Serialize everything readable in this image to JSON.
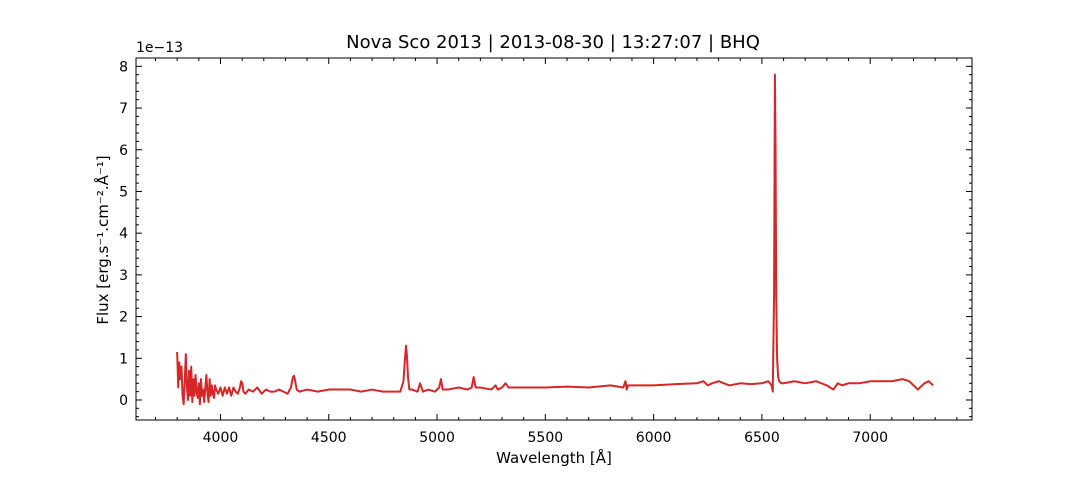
{
  "chart_data": {
    "type": "line",
    "title": "Nova Sco 2013 | 2013-08-30 | 13:27:07 | BHQ",
    "xlabel": "Wavelength [Å]",
    "ylabel": "Flux [erg.s⁻¹.cm⁻².Å⁻¹]",
    "y_offset_label": "1e−13",
    "y_scale_factor": 1e-13,
    "xlim": [
      3610,
      7470
    ],
    "ylim": [
      -0.48,
      8.2
    ],
    "x_ticks": [
      4000,
      4500,
      5000,
      5500,
      6000,
      6500,
      7000
    ],
    "x_tick_labels": [
      "4000",
      "4500",
      "5000",
      "5500",
      "6000",
      "6500",
      "7000"
    ],
    "y_ticks": [
      0,
      1,
      2,
      3,
      4,
      5,
      6,
      7,
      8
    ],
    "y_tick_labels": [
      "0",
      "1",
      "2",
      "3",
      "4",
      "5",
      "6",
      "7",
      "8"
    ],
    "grid": false,
    "line_color": "#d62728",
    "series": [
      {
        "x": [
          3800,
          3805,
          3810,
          3815,
          3820,
          3825,
          3830,
          3835,
          3840,
          3845,
          3850,
          3855,
          3860,
          3865,
          3870,
          3875,
          3880,
          3885,
          3890,
          3895,
          3900,
          3905,
          3910,
          3915,
          3920,
          3925,
          3930,
          3935,
          3940,
          3945,
          3950,
          3955,
          3960,
          3965,
          3970,
          3975,
          3980,
          3990,
          4000,
          4010,
          4020,
          4030,
          4040,
          4050,
          4060,
          4070,
          4080,
          4090,
          4095,
          4101,
          4106,
          4115,
          4130,
          4150,
          4170,
          4190,
          4210,
          4230,
          4250,
          4270,
          4290,
          4310,
          4325,
          4335,
          4340,
          4345,
          4352,
          4365,
          4400,
          4450,
          4500,
          4550,
          4600,
          4650,
          4700,
          4750,
          4800,
          4830,
          4845,
          4852,
          4857,
          4861,
          4866,
          4872,
          4885,
          4910,
          4922,
          4935,
          4960,
          4990,
          5010,
          5018,
          5026,
          5050,
          5100,
          5140,
          5160,
          5169,
          5178,
          5200,
          5250,
          5270,
          5280,
          5300,
          5316,
          5330,
          5400,
          5500,
          5600,
          5700,
          5800,
          5860,
          5870,
          5876,
          5882,
          5890,
          5950,
          6000,
          6100,
          6200,
          6230,
          6250,
          6270,
          6300,
          6350,
          6400,
          6450,
          6500,
          6530,
          6545,
          6550,
          6556,
          6560,
          6563,
          6566,
          6570,
          6575,
          6580,
          6590,
          6600,
          6650,
          6700,
          6750,
          6800,
          6830,
          6850,
          6870,
          6900,
          6950,
          7000,
          7050,
          7100,
          7150,
          7180,
          7200,
          7220,
          7250,
          7270,
          7290
        ],
        "y": [
          1.15,
          0.3,
          0.9,
          0.5,
          0.8,
          0.1,
          -0.1,
          0.45,
          1.1,
          0.3,
          0.0,
          0.7,
          0.1,
          0.8,
          -0.05,
          0.5,
          0.1,
          0.6,
          0.2,
          0.05,
          0.4,
          -0.1,
          0.5,
          0.1,
          0.25,
          -0.05,
          0.3,
          0.6,
          0.15,
          -0.05,
          0.5,
          0.1,
          0.35,
          0.15,
          0.05,
          0.35,
          0.25,
          0.15,
          0.3,
          0.1,
          0.3,
          0.15,
          0.3,
          0.1,
          0.3,
          0.2,
          0.15,
          0.3,
          0.45,
          0.4,
          0.2,
          0.15,
          0.25,
          0.2,
          0.3,
          0.15,
          0.25,
          0.2,
          0.2,
          0.25,
          0.2,
          0.15,
          0.3,
          0.55,
          0.58,
          0.45,
          0.25,
          0.2,
          0.25,
          0.2,
          0.25,
          0.25,
          0.25,
          0.2,
          0.25,
          0.2,
          0.2,
          0.2,
          0.45,
          1.0,
          1.3,
          1.05,
          0.55,
          0.25,
          0.25,
          0.2,
          0.4,
          0.2,
          0.25,
          0.2,
          0.3,
          0.5,
          0.25,
          0.25,
          0.3,
          0.25,
          0.3,
          0.55,
          0.3,
          0.3,
          0.25,
          0.35,
          0.25,
          0.3,
          0.4,
          0.3,
          0.3,
          0.3,
          0.32,
          0.3,
          0.35,
          0.3,
          0.45,
          0.25,
          0.35,
          0.35,
          0.35,
          0.35,
          0.38,
          0.4,
          0.45,
          0.35,
          0.4,
          0.45,
          0.35,
          0.4,
          0.38,
          0.4,
          0.45,
          0.35,
          0.2,
          2.5,
          7.8,
          6.0,
          2.5,
          1.0,
          0.55,
          0.45,
          0.4,
          0.4,
          0.45,
          0.4,
          0.45,
          0.35,
          0.25,
          0.4,
          0.35,
          0.4,
          0.4,
          0.45,
          0.45,
          0.45,
          0.5,
          0.45,
          0.35,
          0.25,
          0.4,
          0.45,
          0.35
        ]
      }
    ]
  }
}
